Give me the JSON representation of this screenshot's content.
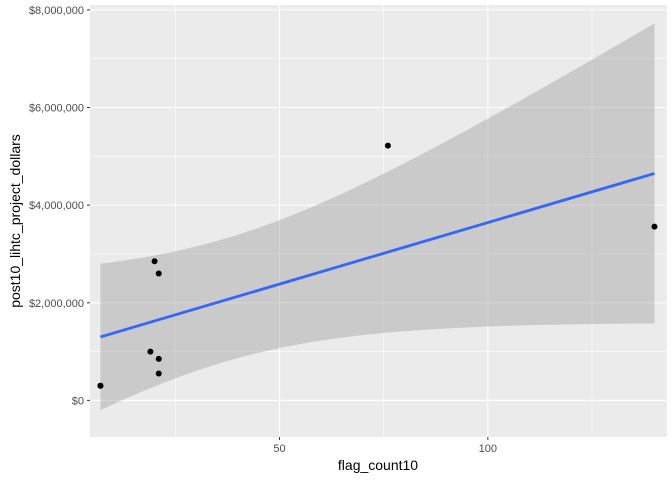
{
  "chart_data": {
    "type": "scatter",
    "title": "",
    "xlabel": "flag_count10",
    "ylabel": "post10_lihtc_project_dollars",
    "xlim": [
      4.5,
      143
    ],
    "ylim": [
      -750000,
      8100000
    ],
    "x_ticks": [
      50,
      100
    ],
    "x_tick_labels": [
      "50",
      "100"
    ],
    "x_minor_ticks": [
      25,
      75,
      125
    ],
    "y_ticks": [
      0,
      2000000,
      4000000,
      6000000,
      8000000
    ],
    "y_tick_labels": [
      "$0",
      "$2,000,000",
      "$4,000,000",
      "$6,000,000",
      "$8,000,000"
    ],
    "y_minor_ticks": [
      1000000,
      3000000,
      5000000,
      7000000
    ],
    "grid": true,
    "legend": "none",
    "series": [
      {
        "values_x": [
          7,
          7,
          20,
          19,
          21,
          21,
          21,
          76,
          140
        ],
        "values_y": [
          300000,
          300000,
          2850000,
          1000000,
          2600000,
          850000,
          550000,
          5220000,
          3560000
        ]
      }
    ],
    "fit": {
      "method": "lm",
      "x_range": [
        7,
        140
      ],
      "line": [
        1300000,
        4650000
      ],
      "ci_lower": [
        -200000,
        1570000
      ],
      "ci_upper": [
        2800000,
        7720000
      ]
    },
    "colors": {
      "panel": "#ebebeb",
      "grid": "#ffffff",
      "points": "#000000",
      "fit_line": "#3366ff",
      "ribbon": "#999999",
      "tick_label": "#4d4d4d"
    }
  }
}
